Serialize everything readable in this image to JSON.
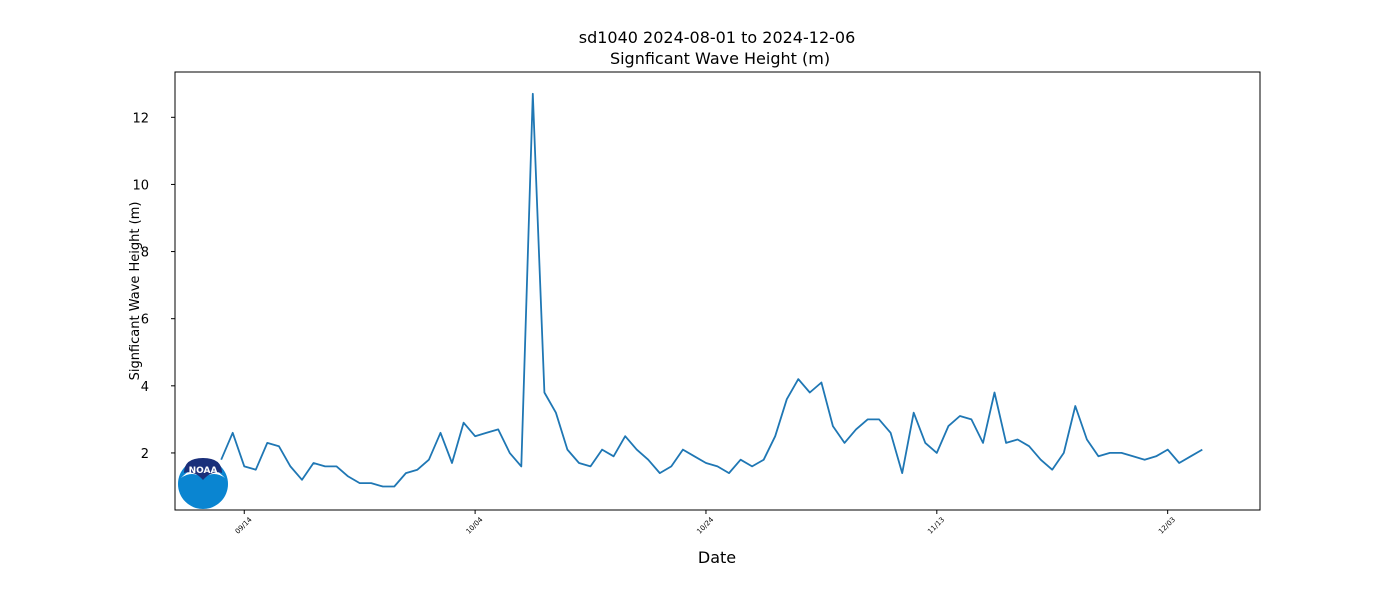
{
  "chart_data": {
    "type": "line",
    "title": "sd1040 2024-08-01 to 2024-12-06",
    "subtitle": "Signficant Wave Height (m)",
    "ylabel": "Signficant Wave Height (m)",
    "xlabel": "Date",
    "logo": "NOAA",
    "x": [
      "09/12",
      "09/13",
      "09/14",
      "09/15",
      "09/16",
      "09/17",
      "09/18",
      "09/19",
      "09/20",
      "09/21",
      "09/22",
      "09/23",
      "09/24",
      "09/25",
      "09/26",
      "09/27",
      "09/28",
      "09/29",
      "09/30",
      "10/01",
      "10/02",
      "10/03",
      "10/04",
      "10/05",
      "10/06",
      "10/07",
      "10/08",
      "10/09",
      "10/10",
      "10/11",
      "10/12",
      "10/13",
      "10/14",
      "10/15",
      "10/16",
      "10/17",
      "10/18",
      "10/19",
      "10/20",
      "10/21",
      "10/22",
      "10/23",
      "10/24",
      "10/25",
      "10/26",
      "10/27",
      "10/28",
      "10/29",
      "10/30",
      "10/31",
      "11/01",
      "11/02",
      "11/03",
      "11/04",
      "11/05",
      "11/06",
      "11/07",
      "11/08",
      "11/09",
      "11/10",
      "11/11",
      "11/12",
      "11/13",
      "11/14",
      "11/15",
      "11/16",
      "11/17",
      "11/18",
      "11/19",
      "11/20",
      "11/21",
      "11/22",
      "11/23",
      "11/24",
      "11/25",
      "11/26",
      "11/27",
      "11/28",
      "11/29",
      "11/30",
      "12/01",
      "12/02",
      "12/03",
      "12/04",
      "12/05",
      "12/06"
    ],
    "series": [
      {
        "name": "Signficant Wave Height (m)",
        "color": "#1f77b4",
        "values": [
          1.8,
          2.6,
          1.6,
          1.5,
          2.3,
          2.2,
          1.6,
          1.2,
          1.7,
          1.6,
          1.6,
          1.3,
          1.1,
          1.1,
          1.0,
          1.0,
          1.4,
          1.5,
          1.8,
          2.6,
          1.7,
          2.9,
          2.5,
          2.6,
          2.7,
          2.0,
          1.6,
          12.7,
          3.8,
          3.2,
          2.1,
          1.7,
          1.6,
          2.1,
          1.9,
          2.5,
          2.1,
          1.8,
          1.4,
          1.6,
          2.1,
          1.9,
          1.7,
          1.6,
          1.4,
          1.8,
          1.6,
          1.8,
          2.5,
          3.6,
          4.2,
          3.8,
          4.1,
          2.8,
          2.3,
          2.7,
          3.0,
          3.0,
          2.6,
          1.4,
          3.2,
          2.3,
          2.0,
          2.8,
          3.1,
          3.0,
          2.3,
          3.8,
          2.3,
          2.4,
          2.2,
          1.8,
          1.5,
          2.0,
          3.4,
          2.4,
          1.9,
          2.0,
          2.0,
          1.9,
          1.8,
          1.9,
          2.1,
          1.7,
          1.9,
          2.1
        ]
      }
    ],
    "xlim": [
      "09/08",
      "12/11"
    ],
    "xticks": [
      "09/14",
      "10/04",
      "10/24",
      "11/13",
      "12/03"
    ],
    "ylim": [
      0.3,
      13.35
    ],
    "yticks": [
      2,
      4,
      6,
      8,
      10,
      12
    ],
    "grid": false
  }
}
